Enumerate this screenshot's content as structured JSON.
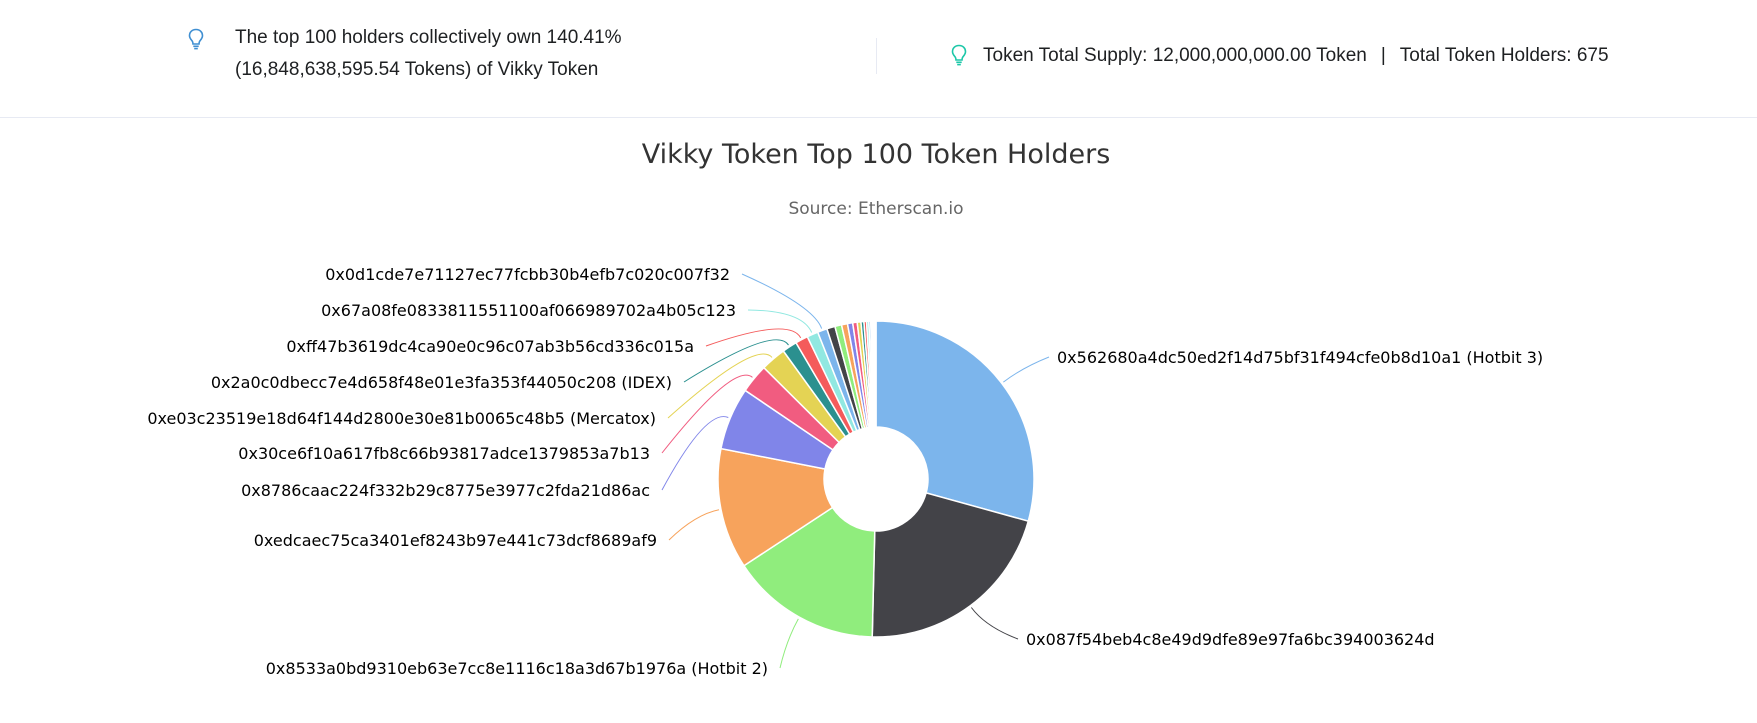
{
  "stats": {
    "holders_line1": "The top 100 holders collectively own 140.41%",
    "holders_line2": "(16,848,638,595.54 Tokens) of Vikky Token",
    "total_supply": "Token Total Supply: 12,000,000,000.00 Token",
    "separator": "|",
    "total_holders": "Total Token Holders: 675",
    "icon": "lightbulb-icon",
    "icon_color_left": "#3f8fd2",
    "icon_color_right": "#1cc7a8"
  },
  "chart_data": {
    "type": "pie",
    "title": "Vikky Token Top 100 Token Holders",
    "subtitle": "Source: Etherscan.io",
    "donut": true,
    "unit": "% of total supply",
    "slices": [
      {
        "label": "0x562680a4dc50ed2f14d75bf31f494cfe0b8d10a1 (Hotbit 3)",
        "value": 38.5,
        "color": "#7cb5ec",
        "labeled": true
      },
      {
        "label": "0x087f54beb4c8e49d9dfe89e97fa6bc394003624d",
        "value": 27.7,
        "color": "#434348",
        "labeled": true
      },
      {
        "label": "0x8533a0bd9310eb63e7cc8e1116c18a3d67b1976a (Hotbit 2)",
        "value": 20.2,
        "color": "#90ed7d",
        "labeled": true
      },
      {
        "label": "0xedcaec75ca3401ef8243b97e441c73dcf8689af9",
        "value": 16.2,
        "color": "#f7a35c",
        "labeled": true
      },
      {
        "label": "0x8786caac224f332b29c8775e3977c2fda21d86ac",
        "value": 8.4,
        "color": "#8085e9",
        "labeled": true
      },
      {
        "label": "0x30ce6f10a617fb8c66b93817adce1379853a7b13",
        "value": 3.9,
        "color": "#f15c80",
        "labeled": true
      },
      {
        "label": "0xe03c23519e18d64f144d2800e30e81b0065c48b5 (Mercatox)",
        "value": 3.4,
        "color": "#e4d354",
        "labeled": true
      },
      {
        "label": "0x2a0c0dbecc7e4d658f48e01e3fa353f44050c208 (IDEX)",
        "value": 2.0,
        "color": "#2b908f",
        "labeled": true
      },
      {
        "label": "0xff47b3619dc4ca90e0c96c07ab3b56cd336c015a",
        "value": 1.7,
        "color": "#f45b5b",
        "labeled": true
      },
      {
        "label": "0x67a08fe0833811551100af066989702a4b05c123",
        "value": 1.5,
        "color": "#91e8e1",
        "labeled": true
      },
      {
        "label": "0x0d1cde7e71127ec77fcbb30b4efb7c020c007f32",
        "value": 1.3,
        "color": "#7cb5ec",
        "labeled": true
      },
      {
        "label": "",
        "value": 1.1,
        "color": "#434348",
        "labeled": false
      },
      {
        "label": "",
        "value": 0.9,
        "color": "#90ed7d",
        "labeled": false
      },
      {
        "label": "",
        "value": 0.8,
        "color": "#f7a35c",
        "labeled": false
      },
      {
        "label": "",
        "value": 0.7,
        "color": "#8085e9",
        "labeled": false
      },
      {
        "label": "",
        "value": 0.6,
        "color": "#f15c80",
        "labeled": false
      },
      {
        "label": "",
        "value": 0.5,
        "color": "#e4d354",
        "labeled": false
      },
      {
        "label": "",
        "value": 0.4,
        "color": "#2b908f",
        "labeled": false
      },
      {
        "label": "",
        "value": 0.35,
        "color": "#f45b5b",
        "labeled": false
      },
      {
        "label": "",
        "value": 0.3,
        "color": "#91e8e1",
        "labeled": false
      },
      {
        "label": "",
        "value": 0.25,
        "color": "#7cb5ec",
        "labeled": false
      },
      {
        "label": "",
        "value": 0.2,
        "color": "#434348",
        "labeled": false
      },
      {
        "label": "",
        "value": 0.2,
        "color": "#90ed7d",
        "labeled": false
      },
      {
        "label": "",
        "value": 0.15,
        "color": "#f7a35c",
        "labeled": false
      },
      {
        "label": "",
        "value": 0.15,
        "color": "#8085e9",
        "labeled": false
      }
    ]
  }
}
